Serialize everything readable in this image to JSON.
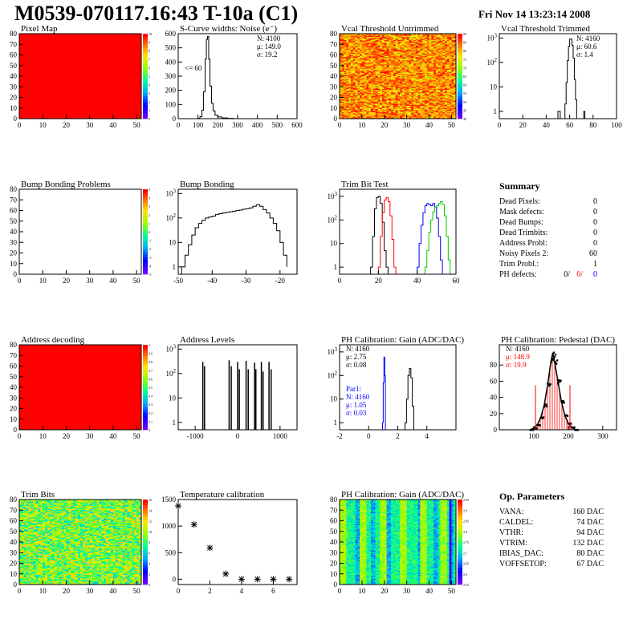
{
  "header": {
    "title": "M0539-070117.16:43 T-10a (C1)",
    "date": "Fri Nov 14 13:23:14 2008"
  },
  "chart_data": [
    {
      "type": "heatmap",
      "title": "Pixel Map",
      "xlim": [
        0,
        52
      ],
      "ylim": [
        0,
        80
      ],
      "xticks": [
        0,
        10,
        20,
        30,
        40,
        50
      ],
      "yticks": [
        0,
        10,
        20,
        30,
        40,
        50,
        60,
        70,
        80
      ],
      "fill": "uniform-max",
      "color": "#ff0000",
      "colorbar": {
        "min": 0,
        "max": 10,
        "ticks": [
          0,
          1,
          2,
          3,
          4,
          5,
          6,
          7,
          8,
          9,
          10
        ]
      }
    },
    {
      "type": "histogram",
      "title": "S-Curve widths: Noise (e⁻)",
      "xlim": [
        0,
        600
      ],
      "ylim": [
        0,
        600
      ],
      "xticks": [
        0,
        100,
        200,
        300,
        400,
        500,
        600
      ],
      "yticks": [
        0,
        100,
        200,
        300,
        400,
        500,
        600
      ],
      "bins": [
        [
          80,
          0
        ],
        [
          100,
          3
        ],
        [
          110,
          15
        ],
        [
          120,
          60
        ],
        [
          128,
          190
        ],
        [
          136,
          420
        ],
        [
          142,
          560
        ],
        [
          148,
          580
        ],
        [
          154,
          420
        ],
        [
          160,
          230
        ],
        [
          168,
          110
        ],
        [
          176,
          55
        ],
        [
          186,
          25
        ],
        [
          200,
          12
        ],
        [
          220,
          5
        ],
        [
          250,
          2
        ],
        [
          280,
          0
        ]
      ],
      "stats": [
        {
          "label": "N: 4100"
        },
        {
          "label": "μ: 149.0"
        },
        {
          "label": "σ: 19.2"
        }
      ],
      "annotation": "<= 60"
    },
    {
      "type": "heatmap",
      "title": "Vcal Threshold Untrimmed",
      "xlim": [
        0,
        52
      ],
      "ylim": [
        0,
        80
      ],
      "xticks": [
        0,
        10,
        20,
        30,
        40,
        50
      ],
      "yticks": [
        0,
        10,
        20,
        30,
        40,
        50,
        60,
        70,
        80
      ],
      "fill": "noise-red-orange",
      "colorbar": {
        "min": 40,
        "max": 90,
        "ticks": [
          40,
          45,
          50,
          55,
          60,
          65,
          70,
          75,
          80,
          85,
          90
        ]
      }
    },
    {
      "type": "histogram",
      "title": "Vcal Threshold Trimmed",
      "log_y": true,
      "xlim": [
        0,
        100
      ],
      "ylim": [
        0.5,
        1500
      ],
      "xticks": [
        0,
        20,
        40,
        60,
        80,
        100
      ],
      "yticks": [
        1,
        10,
        100,
        1000
      ],
      "bins": [
        [
          50,
          1
        ],
        [
          52,
          0
        ],
        [
          56,
          2
        ],
        [
          57,
          15
        ],
        [
          58,
          120
        ],
        [
          59,
          450
        ],
        [
          60,
          900
        ],
        [
          61,
          900
        ],
        [
          62,
          500
        ],
        [
          63,
          150
        ],
        [
          64,
          20
        ],
        [
          65,
          3
        ],
        [
          66,
          0
        ],
        [
          72,
          1
        ],
        [
          73,
          0
        ]
      ],
      "stats": [
        {
          "label": "N: 4160"
        },
        {
          "label": "μ: 60.6"
        },
        {
          "label": "σ: 1.4"
        }
      ]
    },
    {
      "type": "heatmap",
      "title": "Bump Bonding Problems",
      "xlim": [
        0,
        52
      ],
      "ylim": [
        0,
        80
      ],
      "xticks": [
        0,
        10,
        20,
        30,
        40,
        50
      ],
      "yticks": [
        0,
        10,
        20,
        30,
        40,
        50,
        60,
        70,
        80
      ],
      "fill": "empty",
      "colorbar": {
        "min": -5,
        "max": 5,
        "ticks": [
          -5,
          -4,
          -3,
          -2,
          -1,
          0,
          1,
          2,
          3,
          4,
          5
        ]
      }
    },
    {
      "type": "histogram",
      "title": "Bump Bonding",
      "log_y": true,
      "xlim": [
        -50,
        -15
      ],
      "ylim": [
        0.5,
        1500
      ],
      "xticks": [
        -50,
        -40,
        -30,
        -20
      ],
      "yticks": [
        1,
        10,
        100,
        1000
      ],
      "bins": [
        [
          -49,
          1
        ],
        [
          -48,
          3
        ],
        [
          -47,
          8
        ],
        [
          -46,
          20
        ],
        [
          -45,
          40
        ],
        [
          -44,
          60
        ],
        [
          -43,
          80
        ],
        [
          -42,
          100
        ],
        [
          -41,
          110
        ],
        [
          -40,
          120
        ],
        [
          -39,
          140
        ],
        [
          -38,
          150
        ],
        [
          -37,
          160
        ],
        [
          -36,
          170
        ],
        [
          -35,
          180
        ],
        [
          -34,
          190
        ],
        [
          -33,
          200
        ],
        [
          -32,
          210
        ],
        [
          -31,
          230
        ],
        [
          -30,
          240
        ],
        [
          -29,
          260
        ],
        [
          -28,
          300
        ],
        [
          -27,
          350
        ],
        [
          -26,
          300
        ],
        [
          -25,
          220
        ],
        [
          -24,
          160
        ],
        [
          -23,
          100
        ],
        [
          -22,
          60
        ],
        [
          -21,
          30
        ],
        [
          -20,
          10
        ],
        [
          -19,
          3
        ],
        [
          -18,
          1
        ]
      ]
    },
    {
      "type": "histogram",
      "title": "Trim Bit Test",
      "log_y": true,
      "xlim": [
        0,
        60
      ],
      "ylim": [
        0.5,
        2000
      ],
      "xticks": [
        0,
        20,
        40,
        60
      ],
      "yticks": [
        1,
        10,
        100,
        1000
      ],
      "series": [
        {
          "color": "#000000",
          "bins": [
            [
              16,
              1
            ],
            [
              17,
              20
            ],
            [
              18,
              300
            ],
            [
              19,
              900
            ],
            [
              20,
              1000
            ],
            [
              21,
              500
            ],
            [
              22,
              80
            ],
            [
              23,
              5
            ],
            [
              24,
              1
            ],
            [
              25,
              0
            ]
          ]
        },
        {
          "color": "#ff0000",
          "bins": [
            [
              20,
              1
            ],
            [
              21,
              20
            ],
            [
              22,
              200
            ],
            [
              23,
              700
            ],
            [
              24,
              900
            ],
            [
              25,
              600
            ],
            [
              26,
              150
            ],
            [
              27,
              15
            ],
            [
              28,
              1
            ],
            [
              29,
              0
            ]
          ]
        },
        {
          "color": "#0000ff",
          "bins": [
            [
              40,
              1
            ],
            [
              41,
              10
            ],
            [
              42,
              60
            ],
            [
              43,
              200
            ],
            [
              44,
              400
            ],
            [
              45,
              500
            ],
            [
              46,
              450
            ],
            [
              47,
              400
            ],
            [
              48,
              500
            ],
            [
              49,
              350
            ],
            [
              50,
              120
            ],
            [
              51,
              20
            ],
            [
              52,
              2
            ],
            [
              53,
              0
            ]
          ]
        },
        {
          "color": "#00cc00",
          "bins": [
            [
              44,
              1
            ],
            [
              45,
              5
            ],
            [
              46,
              30
            ],
            [
              47,
              100
            ],
            [
              48,
              220
            ],
            [
              49,
              350
            ],
            [
              50,
              400
            ],
            [
              51,
              500
            ],
            [
              52,
              600
            ],
            [
              53,
              450
            ],
            [
              54,
              150
            ],
            [
              55,
              20
            ],
            [
              56,
              2
            ],
            [
              57,
              0
            ]
          ]
        }
      ]
    },
    {
      "type": "table",
      "title": "Summary",
      "rows": [
        {
          "label": "Dead Pixels:",
          "value": "0"
        },
        {
          "label": "Mask defects:",
          "value": "0"
        },
        {
          "label": "Dead Bumps:",
          "value": "0"
        },
        {
          "label": "Dead Trimbits:",
          "value": "0"
        },
        {
          "label": "Address Probl:",
          "value": "0"
        },
        {
          "label": "Noisy Pixels 2:",
          "value": "60"
        },
        {
          "label": "Trim Probl.:",
          "value": "1"
        }
      ],
      "ph_defects": {
        "label": "PH defects:",
        "values": [
          {
            "value": "0/",
            "color": "#000000"
          },
          {
            "value": "0/",
            "color": "#ff0000"
          },
          {
            "value": "0",
            "color": "#0000ff"
          }
        ]
      }
    },
    {
      "type": "heatmap",
      "title": "Address decoding",
      "xlim": [
        0,
        52
      ],
      "ylim": [
        0,
        80
      ],
      "xticks": [
        0,
        10,
        20,
        30,
        40,
        50
      ],
      "yticks": [
        0,
        10,
        20,
        30,
        40,
        50,
        60,
        70,
        80
      ],
      "fill": "uniform-max",
      "color": "#ff0000",
      "colorbar": {
        "min": 0,
        "max": 1,
        "ticks": [
          0,
          0.1,
          0.2,
          0.3,
          0.4,
          0.5,
          0.6,
          0.7,
          0.8,
          0.9,
          1
        ]
      }
    },
    {
      "type": "histogram",
      "title": "Address Levels",
      "log_y": true,
      "xlim": [
        -1400,
        1400
      ],
      "ylim": [
        0.5,
        1500
      ],
      "xticks": [
        -1000,
        0,
        1000
      ],
      "yticks": [
        1,
        10,
        100,
        1000
      ],
      "spikes": [
        [
          -820,
          300
        ],
        [
          -780,
          200
        ],
        [
          -200,
          350
        ],
        [
          -150,
          200
        ],
        [
          0,
          300
        ],
        [
          40,
          150
        ],
        [
          200,
          330
        ],
        [
          250,
          150
        ],
        [
          400,
          280
        ],
        [
          430,
          150
        ],
        [
          560,
          300
        ],
        [
          600,
          120
        ],
        [
          740,
          300
        ],
        [
          790,
          150
        ]
      ]
    },
    {
      "type": "histogram",
      "title": "PH Calibration: Gain (ADC/DAC)",
      "log_y": true,
      "xlim": [
        -2,
        6
      ],
      "ylim": [
        0.5,
        2000
      ],
      "xticks": [
        -2,
        0,
        2,
        4
      ],
      "yticks": [
        1,
        10,
        100,
        1000
      ],
      "series": [
        {
          "name": "Par1:",
          "color": "#0000ff",
          "bins": [
            [
              0.95,
              1
            ],
            [
              1.0,
              50
            ],
            [
              1.05,
              600
            ],
            [
              1.1,
              100
            ],
            [
              1.15,
              0
            ]
          ]
        },
        {
          "color": "#000000",
          "bins": [
            [
              2.5,
              1
            ],
            [
              2.6,
              10
            ],
            [
              2.7,
              100
            ],
            [
              2.8,
              200
            ],
            [
              2.9,
              80
            ],
            [
              3.0,
              5
            ],
            [
              3.1,
              0
            ]
          ]
        }
      ],
      "stats": [
        {
          "label": "N: 4160",
          "color": "#000000"
        },
        {
          "label": "μ: 2.75",
          "color": "#000000"
        },
        {
          "label": "σ: 0.08",
          "color": "#000000"
        },
        {
          "label": "Par1:",
          "color": "#0000ff"
        },
        {
          "label": "N: 4160",
          "color": "#0000ff"
        },
        {
          "label": "μ: 1.05",
          "color": "#0000ff"
        },
        {
          "label": "σ: 0.03",
          "color": "#0000ff"
        }
      ]
    },
    {
      "type": "histogram",
      "title": "PH Calibration: Pedestal (DAC)",
      "xlim": [
        0,
        340
      ],
      "ylim": [
        0,
        105
      ],
      "xticks": [
        100,
        200,
        300
      ],
      "yticks": [
        0,
        20,
        40,
        60,
        80
      ],
      "curve": [
        [
          90,
          0
        ],
        [
          100,
          2
        ],
        [
          110,
          6
        ],
        [
          120,
          15
        ],
        [
          130,
          30
        ],
        [
          140,
          55
        ],
        [
          150,
          85
        ],
        [
          155,
          95
        ],
        [
          160,
          85
        ],
        [
          170,
          60
        ],
        [
          180,
          35
        ],
        [
          190,
          18
        ],
        [
          200,
          8
        ],
        [
          210,
          3
        ],
        [
          220,
          0
        ]
      ],
      "markers": [
        105,
        205
      ],
      "stats": [
        {
          "label": "N: 4160",
          "color": "#000000"
        },
        {
          "label": "μ: 148.9",
          "color": "#ff0000"
        },
        {
          "label": "σ: 19.9",
          "color": "#ff0000"
        }
      ]
    },
    {
      "type": "heatmap",
      "title": "Trim Bits",
      "xlim": [
        0,
        52
      ],
      "ylim": [
        0,
        80
      ],
      "xticks": [
        0,
        10,
        20,
        30,
        40,
        50
      ],
      "yticks": [
        0,
        10,
        20,
        30,
        40,
        50,
        60,
        70,
        80
      ],
      "fill": "noise-green-yellow",
      "colorbar": {
        "min": 0,
        "max": 16,
        "ticks": [
          0,
          2,
          4,
          6,
          8,
          10,
          12,
          14,
          16
        ]
      }
    },
    {
      "type": "scatter",
      "title": "Temperature calibration",
      "xlim": [
        0,
        7.5
      ],
      "ylim": [
        -100,
        1500
      ],
      "xticks": [
        0,
        2,
        4,
        6
      ],
      "yticks": [
        0,
        500,
        1000,
        1500
      ],
      "x": [
        0,
        1,
        2,
        3,
        4,
        5,
        6,
        7
      ],
      "y": [
        1380,
        1030,
        590,
        100,
        0,
        0,
        0,
        0
      ]
    },
    {
      "type": "heatmap",
      "title": "PH Calibration: Gain (ADC/DAC)",
      "xlim": [
        0,
        52
      ],
      "ylim": [
        0,
        80
      ],
      "xticks": [
        0,
        10,
        20,
        30,
        40,
        50
      ],
      "yticks": [
        0,
        10,
        20,
        30,
        40,
        50,
        60,
        70,
        80
      ],
      "fill": "columns-green",
      "colorbar": {
        "min": 2.55,
        "max": 2.95,
        "ticks": [
          2.55,
          2.6,
          2.65,
          2.7,
          2.75,
          2.8,
          2.85,
          2.9,
          2.95
        ]
      }
    },
    {
      "type": "table",
      "title": "Op. Parameters",
      "rows": [
        {
          "label": "VANA:",
          "value": "160 DAC"
        },
        {
          "label": "CALDEL:",
          "value": "74 DAC"
        },
        {
          "label": "VTHR:",
          "value": "94 DAC"
        },
        {
          "label": "VTRIM:",
          "value": "132 DAC"
        },
        {
          "label": "IBIAS_DAC:",
          "value": "80 DAC"
        },
        {
          "label": "VOFFSETOP:",
          "value": "67 DAC"
        }
      ]
    }
  ]
}
